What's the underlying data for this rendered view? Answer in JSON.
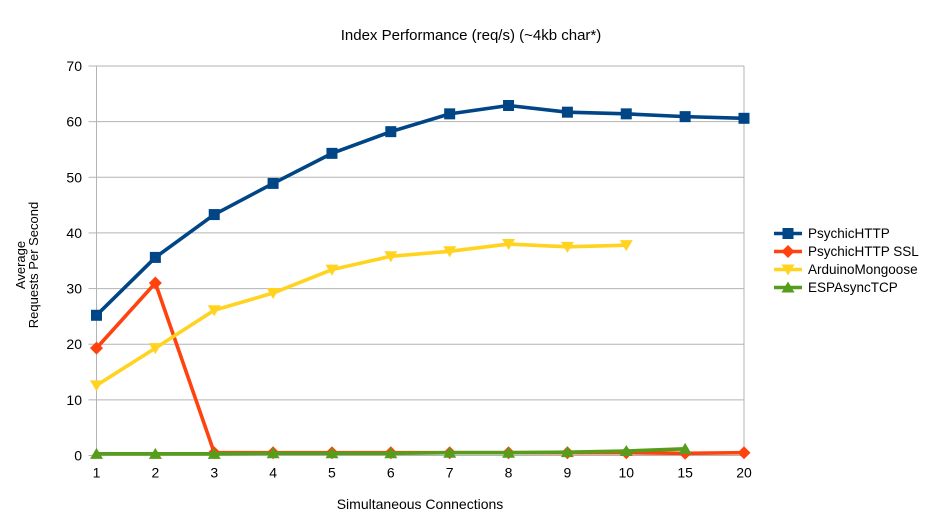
{
  "title": "Index Performance (req/s) (~4kb char*)",
  "colors": {
    "background": "#ffffff",
    "grid": "#b3b3b3",
    "axis": "#b3b3b3",
    "text": "#000000",
    "series_blue": "#004586",
    "series_red": "#ff420e",
    "series_yellow": "#ffd320",
    "series_green": "#579d1c"
  },
  "chart_data": {
    "type": "line",
    "title": "Index Performance (req/s) (~4kb char*)",
    "xlabel": "Simultaneous Connections",
    "ylabel_lines": [
      "Average",
      "Requests Per Second"
    ],
    "categories": [
      "1",
      "2",
      "3",
      "4",
      "5",
      "6",
      "7",
      "8",
      "9",
      "10",
      "15",
      "20"
    ],
    "ylim": [
      0,
      70
    ],
    "ytick_interval": 10,
    "ytick_labels": [
      "0",
      "10",
      "20",
      "30",
      "40",
      "50",
      "60",
      "70"
    ],
    "grid": true,
    "legend_position": "right",
    "series": [
      {
        "name": "PsychicHTTP",
        "color": "#004586",
        "marker": "square",
        "values": [
          25.2,
          35.6,
          43.3,
          48.9,
          54.3,
          58.2,
          61.4,
          62.9,
          61.7,
          61.4,
          60.9,
          60.6
        ]
      },
      {
        "name": "PsychicHTTP SSL",
        "color": "#ff420e",
        "marker": "diamond",
        "values": [
          19.3,
          31.0,
          0.5,
          0.5,
          0.5,
          0.5,
          0.5,
          0.5,
          0.5,
          0.5,
          0.4,
          0.5
        ]
      },
      {
        "name": "ArduinoMongoose",
        "color": "#ffd320",
        "marker": "triangle-down",
        "values": [
          12.6,
          19.3,
          26.1,
          29.2,
          33.4,
          35.8,
          36.7,
          38.0,
          37.5,
          37.8,
          null,
          null
        ]
      },
      {
        "name": "ESPAsyncTCP",
        "color": "#579d1c",
        "marker": "triangle-up",
        "values": [
          0.3,
          0.3,
          0.3,
          0.4,
          0.4,
          0.4,
          0.5,
          0.5,
          0.6,
          0.8,
          1.2,
          null
        ]
      }
    ]
  }
}
